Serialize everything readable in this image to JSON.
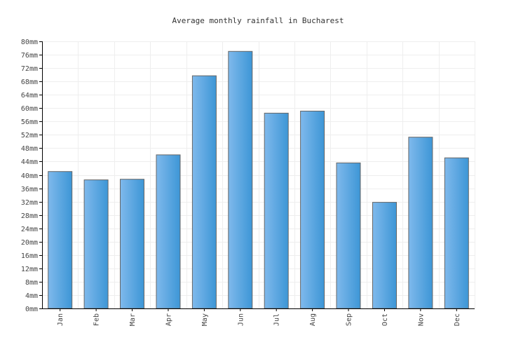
{
  "chart_data": {
    "type": "bar",
    "title": "Average monthly rainfall in Bucharest",
    "xlabel": "",
    "ylabel": "",
    "categories": [
      "Jan",
      "Feb",
      "Mar",
      "Apr",
      "May",
      "Jun",
      "Jul",
      "Aug",
      "Sep",
      "Oct",
      "Nov",
      "Dec"
    ],
    "values": [
      41,
      38.5,
      38.7,
      46,
      69.7,
      77,
      58.5,
      59.1,
      43.6,
      31.8,
      51.3,
      45.1
    ],
    "unit": "mm",
    "ylim": [
      0,
      80
    ],
    "yticks": [
      "0mm",
      "4mm",
      "8mm",
      "12mm",
      "16mm",
      "20mm",
      "24mm",
      "28mm",
      "32mm",
      "36mm",
      "40mm",
      "44mm",
      "48mm",
      "52mm",
      "56mm",
      "60mm",
      "64mm",
      "68mm",
      "72mm",
      "76mm",
      "80mm"
    ],
    "grid": true,
    "legend": "none",
    "colors": {
      "bar_light": "#7fb9ec",
      "bar_dark": "#3d96d6",
      "bar_border": "#666666",
      "grid": "#eeeeee",
      "axis": "#000000"
    }
  }
}
